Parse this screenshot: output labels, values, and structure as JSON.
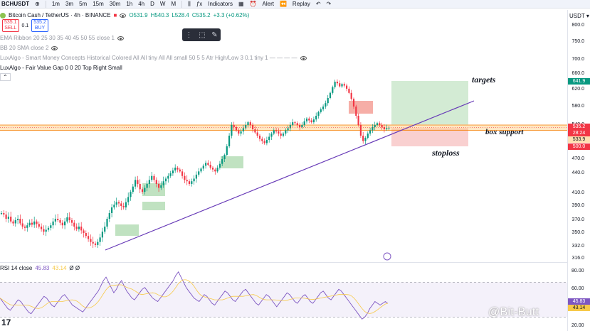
{
  "toolbar": {
    "symbol": "BCHUSDT",
    "timeframes": [
      "1m",
      "3m",
      "5m",
      "15m",
      "30m",
      "1h",
      "4h",
      "D",
      "W",
      "M"
    ],
    "indicators_label": "Indicators",
    "alert_label": "Alert",
    "replay_label": "Replay"
  },
  "legend": {
    "title": "Bitcoin Cash / TetherUS · 4h · BINANCE",
    "open": "O531.9",
    "high": "H540.3",
    "low": "L528.4",
    "close": "C535.2",
    "change": "+3.3 (+0.62%)",
    "sell_price": "535.1",
    "sell_label": "SELL",
    "buy_price": "535.2",
    "buy_label": "BUY",
    "qty": "0.1",
    "indicators": [
      "EMA Ribbon 20 25 30 35 40 45 50 55 close 1",
      "BB 20 SMA close 2",
      "LuxAlgo - Smart Money Concepts Historical Colored All All tiny All All small 50 5 5 Atr High/Low 3 0.1 tiny 1 — — — —",
      "LuxAlgo - Fair Value Gap 0 0 20 Top Right Small"
    ]
  },
  "annotations": {
    "targets": "targets",
    "box_support": "box support",
    "stoploss": "stoploss"
  },
  "price_axis": {
    "currency": "USDT",
    "ticks": [
      "800.0",
      "750.0",
      "700.0",
      "660.0",
      "620.0",
      "580.0",
      "540.0",
      "500.0",
      "470.0",
      "440.0",
      "410.0",
      "390.0",
      "370.0",
      "350.0",
      "332.0",
      "316.0"
    ],
    "target_label": "641.9",
    "price_label": "535.2",
    "countdown_label": "28:24",
    "support_label": "533.9",
    "stop_label": "500.0"
  },
  "rsi": {
    "name": "RSI 14 close",
    "value": "45.83",
    "ma_value": "43.14",
    "extra": "Ø Ø",
    "ticks": [
      "80.00",
      "60.00",
      "20.00"
    ],
    "label_value": "45.83",
    "label_ma": "43.14"
  },
  "watermark": "@Bit-Butt",
  "tv_logo": "17",
  "colors": {
    "up": "#089981",
    "down": "#f23645",
    "trendline": "#673ab7",
    "target_zone": "#c8e6c9",
    "stop_zone": "#f8c4c4",
    "support_band": "#ffb74d"
  },
  "chart_data": {
    "type": "candlestick",
    "series": [
      {
        "name": "BCHUSDT",
        "values": [
          380,
          378,
          372,
          375,
          368,
          365,
          370,
          372,
          365,
          360,
          358,
          362,
          366,
          363,
          368,
          364,
          360,
          356,
          352,
          355,
          358,
          362,
          368,
          372,
          370,
          366,
          362,
          368,
          374,
          370,
          366,
          360,
          356,
          360,
          354,
          350,
          346,
          342,
          338,
          336,
          334,
          338,
          344,
          352,
          360,
          372,
          380,
          388,
          392,
          396,
          394,
          390,
          388,
          396,
          404,
          412,
          420,
          430,
          424,
          416,
          412,
          418,
          424,
          430,
          436,
          430,
          424,
          418,
          422,
          428,
          432,
          436,
          440,
          446,
          452,
          448,
          444,
          436,
          430,
          428,
          424,
          428,
          432,
          438,
          444,
          450,
          456,
          462,
          458,
          452,
          448,
          444,
          452,
          460,
          470,
          480,
          500,
          520,
          540,
          536,
          530,
          524,
          528,
          534,
          540,
          546,
          540,
          532,
          526,
          520,
          514,
          510,
          506,
          512,
          518,
          524,
          530,
          528,
          524,
          520,
          524,
          530,
          534,
          540,
          546,
          544,
          540,
          536,
          540,
          548,
          554,
          550,
          546,
          552,
          560,
          568,
          574,
          580,
          588,
          600,
          612,
          626,
          640,
          636,
          628,
          634,
          630,
          622,
          612,
          598,
          580,
          560,
          540,
          520,
          510,
          516,
          524,
          530,
          536,
          540,
          544,
          540,
          536,
          532,
          534,
          535
        ]
      }
    ],
    "ylim": [
      316,
      800
    ],
    "trendline": {
      "from": [
        0,
        332
      ],
      "to": [
        170,
        590
      ]
    },
    "target_zone": [
      541,
      641.9
    ],
    "stop_zone": [
      500,
      533.9
    ],
    "support_band": [
      530,
      540
    ],
    "rsi": {
      "values": [
        52,
        48,
        44,
        40,
        38,
        42,
        46,
        50,
        48,
        44,
        40,
        36,
        34,
        38,
        42,
        46,
        50,
        54,
        52,
        48,
        44,
        42,
        46,
        50,
        54,
        56,
        52,
        48,
        44,
        42,
        40,
        38,
        36,
        40,
        44,
        48,
        52,
        56,
        60,
        66,
        72,
        76,
        70,
        64,
        58,
        62,
        68,
        72,
        66,
        60,
        56,
        52,
        50,
        54,
        58,
        62,
        64,
        60,
        56,
        52,
        50,
        48,
        52,
        56,
        60,
        64,
        68,
        72,
        78,
        82,
        76,
        70,
        64,
        60,
        56,
        52,
        50,
        48,
        52,
        56,
        54,
        50,
        46,
        44,
        48,
        52,
        56,
        60,
        58,
        54,
        50,
        48,
        52,
        56,
        60,
        62,
        58,
        54,
        50,
        46,
        44,
        48,
        52,
        56,
        54,
        50,
        46,
        42,
        46,
        50,
        54,
        58,
        56,
        52,
        48,
        46,
        50,
        54,
        56,
        52,
        48,
        46,
        50,
        54,
        58,
        60,
        56,
        52,
        50,
        54,
        58,
        62,
        60,
        56,
        52,
        48,
        44,
        40,
        36,
        32,
        28,
        30,
        34,
        40,
        44,
        48,
        46,
        44,
        46,
        48,
        45.83
      ],
      "ylim": [
        20,
        85
      ],
      "bands": [
        30,
        70
      ]
    }
  }
}
